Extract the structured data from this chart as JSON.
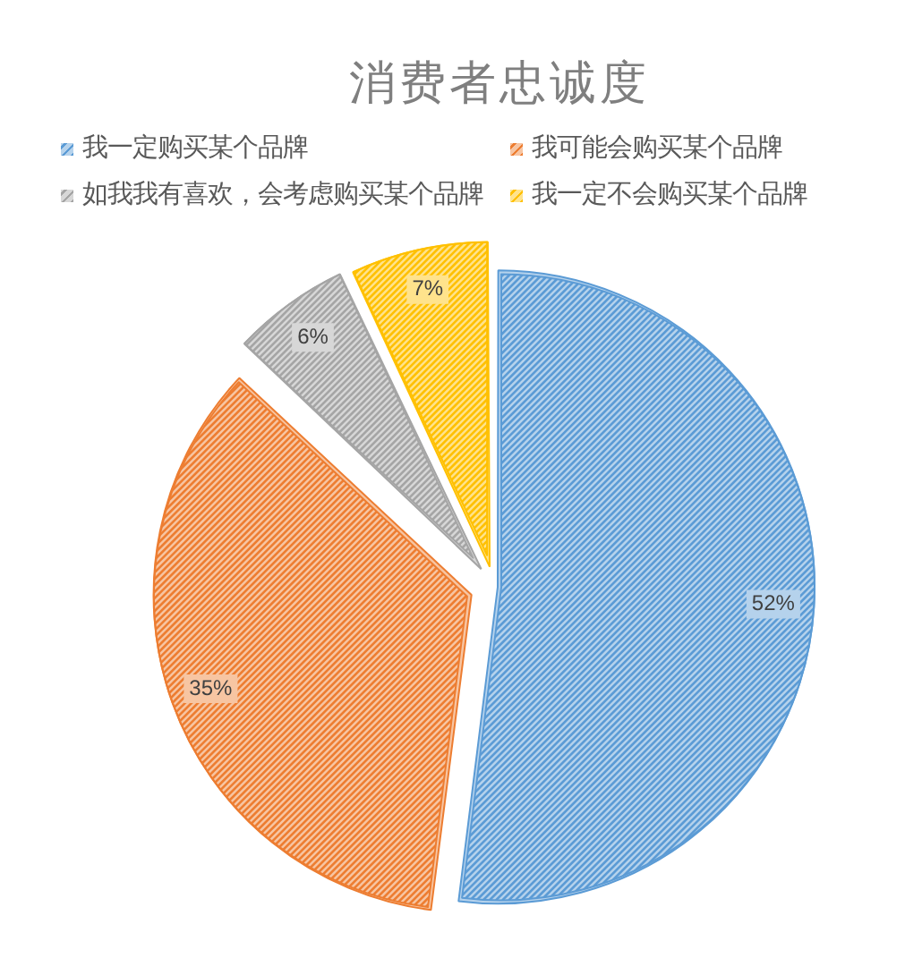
{
  "chart_data": {
    "type": "pie",
    "title": "消费者忠诚度",
    "categories": [
      "我一定购买某个品牌",
      "我可能会购买某个品牌",
      "如我我有喜欢，会考虑购买某个品牌",
      "我一定不会购买某个品牌"
    ],
    "values": [
      52,
      35,
      6,
      7
    ],
    "colors": [
      "#5b9bd5",
      "#ed7d31",
      "#a5a5a5",
      "#ffc000"
    ],
    "value_labels": [
      "52%",
      "35%",
      "6%",
      "7%"
    ],
    "legend": "top"
  }
}
